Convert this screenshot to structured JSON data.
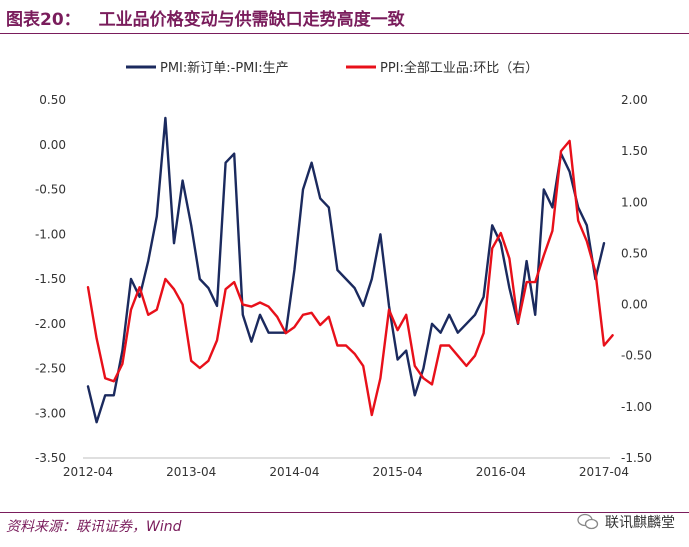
{
  "header": {
    "figure_label": "图表20：",
    "title": "工业品价格变动与供需缺口走势高度一致"
  },
  "footer": {
    "source": "资料来源：联讯证券，Wind",
    "watermark": "联讯麒麟堂"
  },
  "colors": {
    "pmi": "#1b2a5e",
    "ppi": "#e8101a",
    "accent": "#7a1d5c"
  },
  "chart_data": {
    "type": "line",
    "title": "工业品价格变动与供需缺口走势高度一致",
    "x_tick_labels": [
      "2012-04",
      "2013-04",
      "2014-04",
      "2015-04",
      "2016-04",
      "2017-04"
    ],
    "x_tick_index": [
      0,
      12,
      24,
      36,
      48,
      60
    ],
    "y_left": {
      "ticks": [
        "0.50",
        "0.00",
        "-0.50",
        "-1.00",
        "-1.50",
        "-2.00",
        "-2.50",
        "-3.00",
        "-3.50"
      ],
      "range": [
        -3.5,
        0.5
      ]
    },
    "y_right": {
      "ticks": [
        "2.00",
        "1.50",
        "1.00",
        "0.50",
        "0.00",
        "-0.50",
        "-1.00",
        "-1.50"
      ],
      "range": [
        -1.5,
        2.0
      ]
    },
    "legend_position": "top-center",
    "series": [
      {
        "name": "PMI:新订单:-PMI:生产",
        "axis": "left",
        "values": [
          -2.7,
          -3.1,
          -2.8,
          -2.8,
          -2.3,
          -1.5,
          -1.7,
          -1.3,
          -0.8,
          0.3,
          -1.1,
          -0.4,
          -0.9,
          -1.5,
          -1.6,
          -1.8,
          -0.2,
          -0.1,
          -1.9,
          -2.2,
          -1.9,
          -2.1,
          -2.1,
          -2.1,
          -1.4,
          -0.5,
          -0.2,
          -0.6,
          -0.7,
          -1.4,
          -1.5,
          -1.6,
          -1.8,
          -1.5,
          -1.0,
          -1.8,
          -2.4,
          -2.3,
          -2.8,
          -2.5,
          -2.0,
          -2.1,
          -1.9,
          -2.1,
          -2.0,
          -1.9,
          -1.7,
          -0.9,
          -1.1,
          -1.6,
          -2.0,
          -1.3,
          -1.9,
          -0.5,
          -0.7,
          -0.1,
          -0.3,
          -0.7,
          -0.9,
          -1.5,
          -1.1
        ]
      },
      {
        "name": "PPI:全部工业品:环比（右）",
        "axis": "right",
        "values": [
          0.17,
          -0.33,
          -0.72,
          -0.75,
          -0.58,
          -0.05,
          0.17,
          -0.1,
          -0.05,
          0.25,
          0.15,
          0.0,
          -0.55,
          -0.62,
          -0.55,
          -0.35,
          0.15,
          0.22,
          0.0,
          -0.02,
          0.02,
          -0.02,
          -0.12,
          -0.28,
          -0.22,
          -0.1,
          -0.08,
          -0.2,
          -0.12,
          -0.4,
          -0.4,
          -0.48,
          -0.6,
          -1.08,
          -0.72,
          -0.05,
          -0.25,
          -0.1,
          -0.6,
          -0.72,
          -0.78,
          -0.4,
          -0.4,
          -0.5,
          -0.6,
          -0.5,
          -0.28,
          0.55,
          0.7,
          0.45,
          -0.18,
          0.22,
          0.22,
          0.48,
          0.72,
          1.5,
          1.6,
          0.82,
          0.62,
          0.32,
          -0.4,
          -0.3
        ]
      }
    ]
  }
}
